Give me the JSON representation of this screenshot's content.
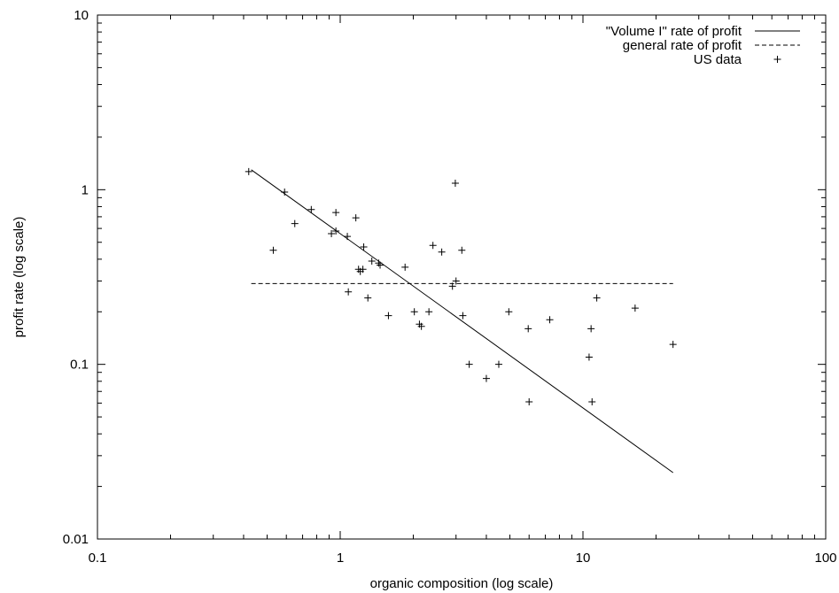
{
  "chart_data": {
    "type": "scatter",
    "xlabel": "organic composition (log scale)",
    "ylabel": "profit rate (log scale)",
    "xscale": "log",
    "yscale": "log",
    "xlim": [
      0.1,
      100
    ],
    "ylim": [
      0.01,
      10
    ],
    "xticks": [
      {
        "value": 0.1,
        "label": "0.1"
      },
      {
        "value": 1,
        "label": "1"
      },
      {
        "value": 10,
        "label": "10"
      },
      {
        "value": 100,
        "label": "100"
      }
    ],
    "yticks": [
      {
        "value": 0.01,
        "label": "0.01"
      },
      {
        "value": 0.1,
        "label": "0.1"
      },
      {
        "value": 1,
        "label": "1"
      },
      {
        "value": 10,
        "label": "10"
      }
    ],
    "grid": false,
    "legend_position": "top-right",
    "series": [
      {
        "name": "\"Volume I\" rate of profit",
        "kind": "line",
        "style": "solid",
        "points": [
          [
            0.43,
            1.3
          ],
          [
            23.5,
            0.024
          ]
        ]
      },
      {
        "name": "general rate of profit",
        "kind": "line",
        "style": "dashed",
        "points": [
          [
            0.43,
            0.29
          ],
          [
            23.5,
            0.29
          ]
        ]
      },
      {
        "name": "US data",
        "kind": "scatter",
        "marker": "+",
        "points": [
          [
            0.42,
            1.27
          ],
          [
            0.53,
            0.45
          ],
          [
            0.59,
            0.97
          ],
          [
            0.65,
            0.64
          ],
          [
            0.76,
            0.77
          ],
          [
            0.92,
            0.56
          ],
          [
            0.96,
            0.58
          ],
          [
            0.96,
            0.74
          ],
          [
            1.07,
            0.54
          ],
          [
            1.08,
            0.26
          ],
          [
            1.16,
            0.69
          ],
          [
            1.19,
            0.35
          ],
          [
            1.21,
            0.34
          ],
          [
            1.24,
            0.35
          ],
          [
            1.25,
            0.47
          ],
          [
            1.3,
            0.24
          ],
          [
            1.35,
            0.39
          ],
          [
            1.44,
            0.38
          ],
          [
            1.46,
            0.37
          ],
          [
            1.58,
            0.19
          ],
          [
            1.85,
            0.36
          ],
          [
            2.02,
            0.2
          ],
          [
            2.12,
            0.17
          ],
          [
            2.16,
            0.165
          ],
          [
            2.32,
            0.2
          ],
          [
            2.41,
            0.48
          ],
          [
            2.62,
            0.44
          ],
          [
            2.9,
            0.28
          ],
          [
            2.98,
            1.09
          ],
          [
            3.0,
            0.3
          ],
          [
            3.17,
            0.45
          ],
          [
            3.2,
            0.19
          ],
          [
            3.4,
            0.1
          ],
          [
            4.0,
            0.083
          ],
          [
            4.5,
            0.1
          ],
          [
            4.95,
            0.2
          ],
          [
            5.95,
            0.16
          ],
          [
            6.0,
            0.061
          ],
          [
            7.3,
            0.18
          ],
          [
            10.6,
            0.11
          ],
          [
            10.8,
            0.16
          ],
          [
            10.9,
            0.061
          ],
          [
            11.4,
            0.24
          ],
          [
            16.4,
            0.21
          ],
          [
            23.5,
            0.13
          ]
        ]
      }
    ]
  }
}
